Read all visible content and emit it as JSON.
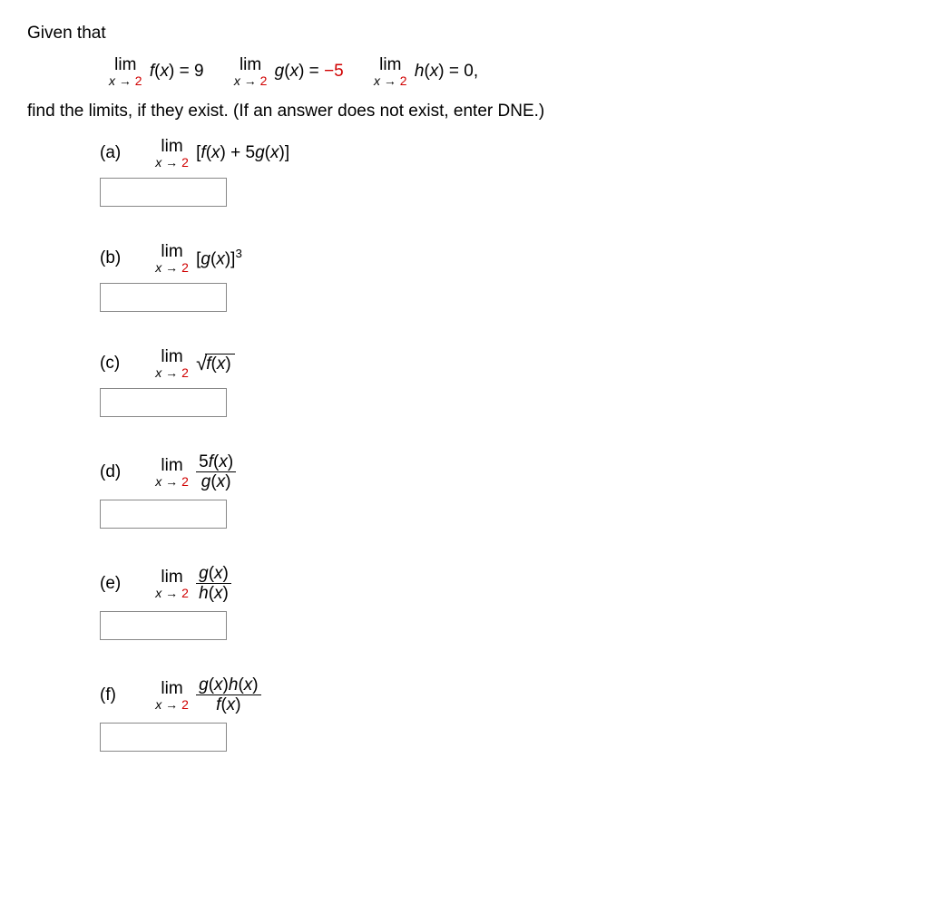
{
  "intro_text": "Given that",
  "given": {
    "f": {
      "limword": "lim",
      "sub_left": "x → ",
      "sub_red": "2",
      "body": "f(x) = 9"
    },
    "g": {
      "limword": "lim",
      "sub_left": "x → ",
      "sub_red": "2",
      "body_pre": "g(x) = ",
      "body_val": "−5"
    },
    "h": {
      "limword": "lim",
      "sub_left": "x → ",
      "sub_red": "2",
      "body": "h(x) = 0,"
    }
  },
  "instruction": "find the limits, if they exist. (If an answer does not exist, enter DNE.)",
  "problems": {
    "a": {
      "label": "(a)",
      "limword": "lim",
      "sub_left": "x → ",
      "sub_red": "2",
      "expr_open": "[",
      "expr_f": "f",
      "expr_mid1": "(",
      "expr_x1": "x",
      "expr_mid2": ") + 5",
      "expr_g": "g",
      "expr_mid3": "(",
      "expr_x2": "x",
      "expr_close": ")]"
    },
    "b": {
      "label": "(b)",
      "limword": "lim",
      "sub_left": "x → ",
      "sub_red": "2",
      "expr_open": "[",
      "expr_g": "g",
      "expr_mid1": "(",
      "expr_x": "x",
      "expr_close": ")]",
      "power": "3"
    },
    "c": {
      "label": "(c)",
      "limword": "lim",
      "sub_left": "x → ",
      "sub_red": "2",
      "sqrt_f": "f",
      "sqrt_mid1": "(",
      "sqrt_x": "x",
      "sqrt_close": ")"
    },
    "d": {
      "label": "(d)",
      "limword": "lim",
      "sub_left": "x → ",
      "sub_red": "2",
      "num_5": "5",
      "num_f": "f",
      "num_mid1": "(",
      "num_x": "x",
      "num_close": ")",
      "den_g": "g",
      "den_mid1": "(",
      "den_x": "x",
      "den_close": ")"
    },
    "e": {
      "label": "(e)",
      "limword": "lim",
      "sub_left": "x → ",
      "sub_red": "2",
      "num_g": "g",
      "num_mid1": "(",
      "num_x": "x",
      "num_close": ")",
      "den_h": "h",
      "den_mid1": "(",
      "den_x": "x",
      "den_close": ")"
    },
    "f": {
      "label": "(f)",
      "limword": "lim",
      "sub_left": "x → ",
      "sub_red": "2",
      "num_g": "g",
      "num_m1": "(",
      "num_x1": "x",
      "num_m2": ")",
      "num_h": "h",
      "num_m3": "(",
      "num_x2": "x",
      "num_m4": ")",
      "den_f": "f",
      "den_m1": "(",
      "den_x": "x",
      "den_m2": ")"
    }
  }
}
